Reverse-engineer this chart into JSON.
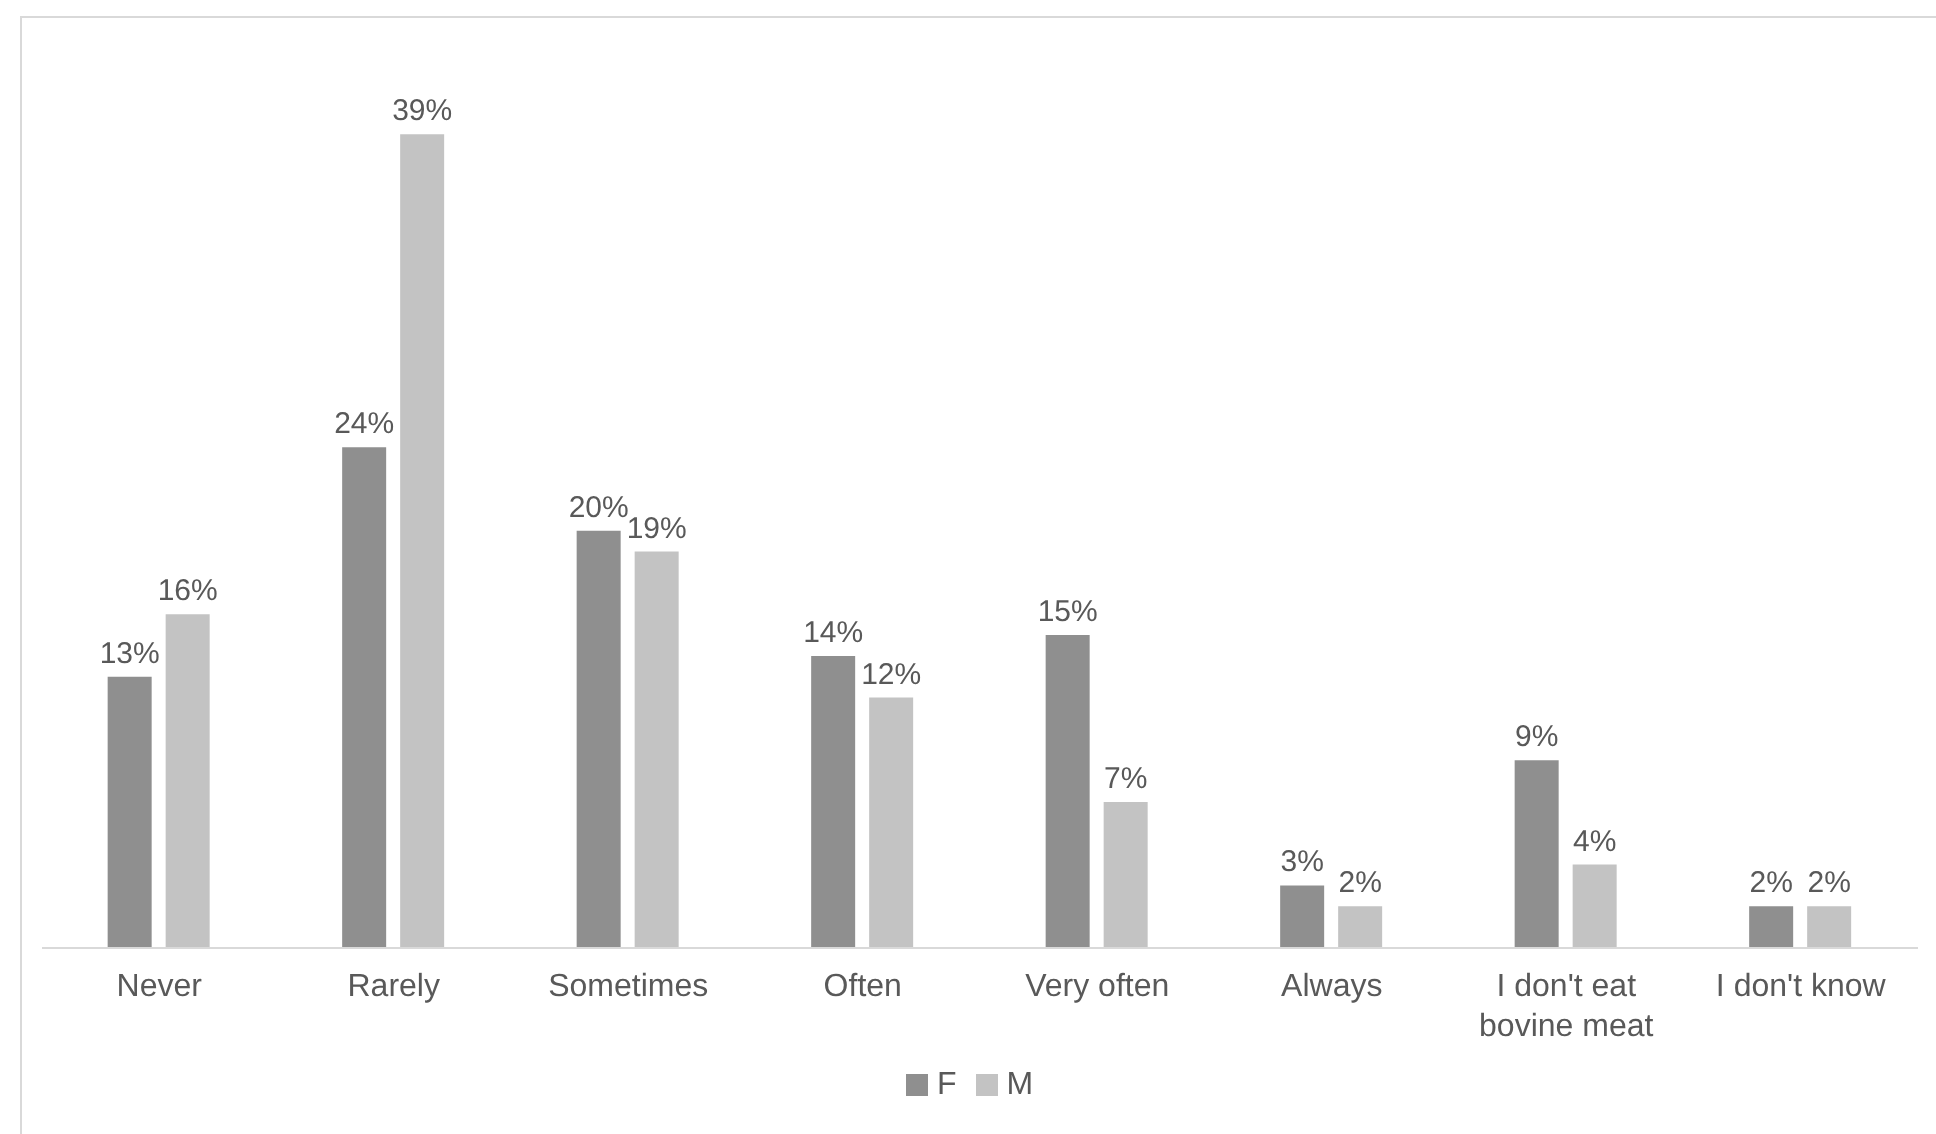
{
  "chart_data": {
    "type": "bar",
    "categories": [
      "Never",
      "Rarely",
      "Sometimes",
      "Often",
      "Very often",
      "Always",
      "I don't eat bovine meat",
      "I don't know"
    ],
    "series": [
      {
        "name": "F",
        "color": "#8f8f8f",
        "values": [
          13,
          24,
          20,
          14,
          15,
          3,
          9,
          2
        ],
        "value_labels": [
          "13%",
          "24%",
          "20%",
          "14%",
          "15%",
          "3%",
          "9%",
          "2%"
        ]
      },
      {
        "name": "M",
        "color": "#c3c3c3",
        "values": [
          16,
          39,
          19,
          12,
          7,
          2,
          4,
          2
        ],
        "value_labels": [
          "16%",
          "39%",
          "19%",
          "12%",
          "7%",
          "2%",
          "4%",
          "2%"
        ]
      }
    ],
    "legend": "bottom",
    "tick_labels": "x"
  }
}
